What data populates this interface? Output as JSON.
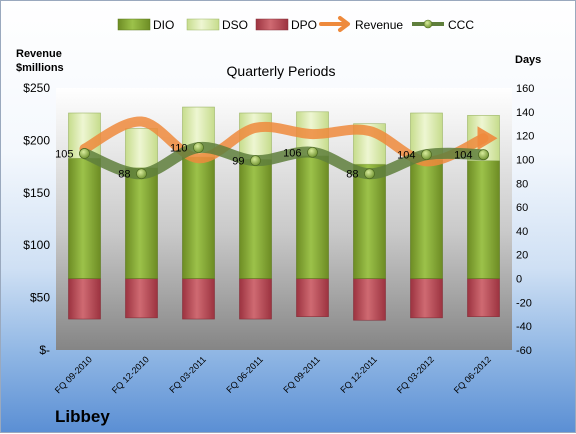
{
  "chart_data": {
    "type": "bar",
    "title": "Quarterly Periods",
    "company": "Libbey",
    "y_left_label": [
      "Revenue",
      "$millions"
    ],
    "y_right_label": "Days",
    "categories": [
      "FQ 09-2010",
      "FQ 12-2010",
      "FQ 03-2011",
      "FQ 06-2011",
      "FQ 09-2011",
      "FQ 12-2011",
      "FQ 03-2012",
      "FQ 06-2012"
    ],
    "left_axis": {
      "min": 0,
      "max": 250,
      "step": 50,
      "ticks": [
        "$-",
        "$50",
        "$100",
        "$150",
        "$200",
        "$250"
      ]
    },
    "right_axis": {
      "min": -60,
      "max": 160,
      "step": 20,
      "ticks": [
        "-60",
        "-40",
        "-20",
        "0",
        "20",
        "40",
        "60",
        "80",
        "100",
        "120",
        "140",
        "160"
      ]
    },
    "legend_position": "top",
    "series": [
      {
        "name": "DIO",
        "kind": "stacked-bar",
        "axis": "right",
        "color": "#7a9a2e",
        "values": [
          101,
          93,
          102,
          100,
          103,
          96,
          100,
          99
        ]
      },
      {
        "name": "DSO",
        "kind": "stacked-bar",
        "axis": "right",
        "color": "#d4e6a4",
        "values": [
          38,
          33,
          42,
          39,
          37,
          34,
          39,
          38
        ]
      },
      {
        "name": "DPO",
        "kind": "stacked-bar-negative",
        "axis": "right",
        "color": "#b04550",
        "values": [
          -34,
          -33,
          -34,
          -34,
          -32,
          -35,
          -33,
          -32
        ]
      },
      {
        "name": "Revenue",
        "kind": "line",
        "axis": "left",
        "color": "#ee8a3c",
        "values": [
          192,
          218,
          183,
          212,
          206,
          209,
          180,
          202
        ]
      },
      {
        "name": "CCC",
        "kind": "line",
        "axis": "right",
        "color": "#5f7f3c",
        "values": [
          105,
          88,
          110,
          99,
          106,
          88,
          104,
          104
        ]
      }
    ],
    "ccc_labels": [
      "105",
      "88",
      "110",
      "99",
      "106",
      "88",
      "104",
      "104"
    ]
  },
  "colors": {
    "plot_top": "#ffffff",
    "plot_bottom": "#8a8a8a",
    "dio": "#7a9a2e",
    "dso": "#d4e6a4",
    "dpo": "#b04550",
    "revenue": "#ee8a3c",
    "ccc": "#5f7f3c"
  }
}
